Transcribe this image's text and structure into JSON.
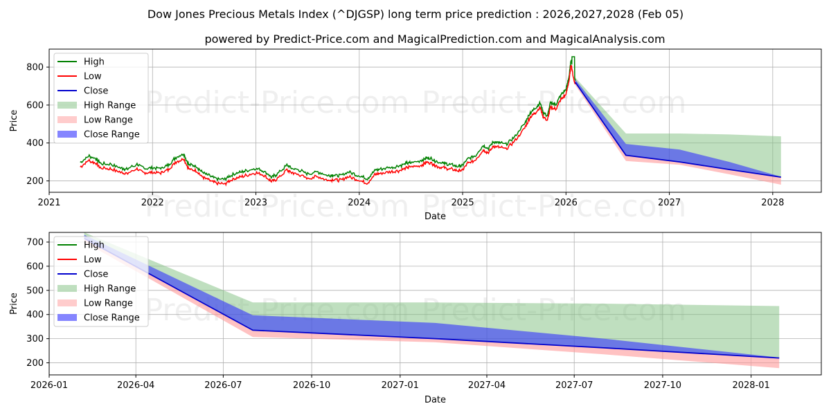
{
  "title": "Dow Jones Precious Metals Index (^DJGSP) long term price prediction : 2026,2027,2028 (Feb 05)",
  "subtitle": "powered by Predict-Price.com and MagicalPrediction.com and MagicalAnalysis.com",
  "watermark": "Predict-Price.com",
  "colors": {
    "high": "#008000",
    "low": "#ff0000",
    "close": "#0000cd",
    "high_range": "#7fbf7f",
    "low_range": "#ff9999",
    "close_range": "#3333ff"
  },
  "legend": {
    "items": [
      {
        "label": "High",
        "kind": "line",
        "color_key": "high"
      },
      {
        "label": "Low",
        "kind": "line",
        "color_key": "low"
      },
      {
        "label": "Close",
        "kind": "line",
        "color_key": "close"
      },
      {
        "label": "High Range",
        "kind": "patch",
        "color_key": "high_range"
      },
      {
        "label": "Low Range",
        "kind": "patch",
        "color_key": "low_range"
      },
      {
        "label": "Close Range",
        "kind": "patch",
        "color_key": "close_range"
      }
    ]
  },
  "chart_data": [
    {
      "type": "line",
      "name": "history-and-forecast",
      "xlabel": "Date",
      "ylabel": "Price",
      "xlim": [
        2021.0,
        2028.47
      ],
      "ylim": [
        140,
        895
      ],
      "xticks": [
        {
          "v": 2021.0,
          "label": "2021"
        },
        {
          "v": 2022.0,
          "label": "2022"
        },
        {
          "v": 2023.0,
          "label": "2023"
        },
        {
          "v": 2024.0,
          "label": "2024"
        },
        {
          "v": 2025.0,
          "label": "2025"
        },
        {
          "v": 2026.0,
          "label": "2026"
        },
        {
          "v": 2027.0,
          "label": "2027"
        },
        {
          "v": 2028.0,
          "label": "2028"
        }
      ],
      "yticks": [
        {
          "v": 200,
          "label": "200"
        },
        {
          "v": 400,
          "label": "400"
        },
        {
          "v": 600,
          "label": "600"
        },
        {
          "v": 800,
          "label": "800"
        }
      ],
      "history": {
        "x": [
          2021.3,
          2021.38,
          2021.45,
          2021.5,
          2021.6,
          2021.7,
          2021.75,
          2021.85,
          2021.92,
          2022.0,
          2022.08,
          2022.15,
          2022.22,
          2022.3,
          2022.35,
          2022.42,
          2022.48,
          2022.55,
          2022.62,
          2022.7,
          2022.75,
          2022.82,
          2022.9,
          2023.0,
          2023.08,
          2023.15,
          2023.2,
          2023.3,
          2023.35,
          2023.42,
          2023.5,
          2023.6,
          2023.7,
          2023.75,
          2023.82,
          2023.9,
          2024.0,
          2024.08,
          2024.15,
          2024.2,
          2024.3,
          2024.38,
          2024.45,
          2024.5,
          2024.6,
          2024.65,
          2024.7,
          2024.75,
          2024.82,
          2024.88,
          2024.95,
          2025.0,
          2025.05,
          2025.12,
          2025.2,
          2025.25,
          2025.3,
          2025.35,
          2025.42,
          2025.5,
          2025.6,
          2025.65,
          2025.7,
          2025.75,
          2025.78,
          2025.82,
          2025.85,
          2025.9,
          2025.95,
          2026.0,
          2026.03,
          2026.05,
          2026.07,
          2026.09
        ],
        "close": [
          285,
          320,
          305,
          280,
          275,
          255,
          250,
          275,
          255,
          255,
          255,
          270,
          310,
          330,
          275,
          265,
          235,
          215,
          200,
          195,
          215,
          230,
          240,
          255,
          240,
          210,
          220,
          270,
          255,
          245,
          225,
          235,
          215,
          220,
          215,
          235,
          215,
          200,
          245,
          250,
          260,
          265,
          280,
          285,
          295,
          310,
          305,
          290,
          280,
          275,
          265,
          270,
          305,
          320,
          375,
          360,
          395,
          390,
          380,
          420,
          490,
          545,
          570,
          600,
          550,
          530,
          600,
          590,
          640,
          670,
          740,
          830,
          760,
          720
        ],
        "high_offset": 12,
        "low_offset": -12,
        "peak_high": [
          2026.07,
          855
        ]
      },
      "forecast": {
        "x": [
          2026.09,
          2026.58,
          2027.1,
          2027.58,
          2028.08
        ],
        "close": [
          720,
          335,
          300,
          260,
          220
        ],
        "high_range_top": [
          745,
          450,
          450,
          445,
          435
        ],
        "close_range_top": [
          735,
          395,
          365,
          300,
          222
        ],
        "low_range_bottom": [
          705,
          305,
          285,
          235,
          180
        ]
      }
    },
    {
      "type": "line",
      "name": "forecast-zoom",
      "xlabel": "Date",
      "ylabel": "Price",
      "xlim": [
        2026.0,
        2028.2
      ],
      "ylim": [
        150,
        740
      ],
      "xticks": [
        {
          "v": 2026.0,
          "label": "2026-01"
        },
        {
          "v": 2026.247,
          "label": "2026-04"
        },
        {
          "v": 2026.496,
          "label": "2026-07"
        },
        {
          "v": 2026.748,
          "label": "2026-10"
        },
        {
          "v": 2027.0,
          "label": "2027-01"
        },
        {
          "v": 2027.247,
          "label": "2027-04"
        },
        {
          "v": 2027.496,
          "label": "2027-07"
        },
        {
          "v": 2027.748,
          "label": "2027-10"
        },
        {
          "v": 2028.0,
          "label": "2028-01"
        }
      ],
      "yticks": [
        {
          "v": 200,
          "label": "200"
        },
        {
          "v": 300,
          "label": "300"
        },
        {
          "v": 400,
          "label": "400"
        },
        {
          "v": 500,
          "label": "500"
        },
        {
          "v": 600,
          "label": "600"
        },
        {
          "v": 700,
          "label": "700"
        }
      ],
      "forecast": {
        "x": [
          2026.1,
          2026.58,
          2027.1,
          2027.58,
          2028.08
        ],
        "close": [
          715,
          335,
          300,
          262,
          220
        ],
        "high_range_top": [
          740,
          450,
          450,
          445,
          435
        ],
        "close_range_top": [
          730,
          397,
          365,
          300,
          222
        ],
        "low_range_bottom": [
          700,
          307,
          285,
          235,
          178
        ]
      }
    }
  ]
}
